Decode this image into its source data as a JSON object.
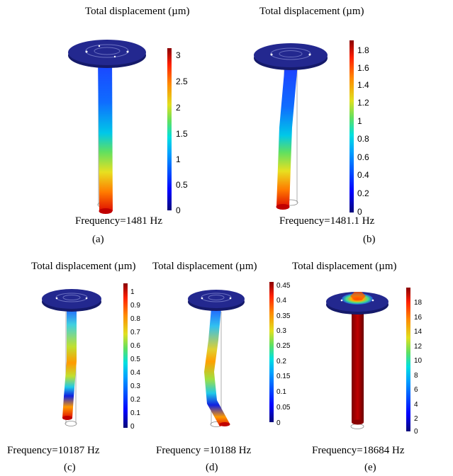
{
  "panels": [
    {
      "title": "Total displacement (µm)",
      "frequency": "Frequency=1481 Hz",
      "label": "(a)",
      "ticks": [
        "3",
        "2.5",
        "2",
        "1.5",
        "1",
        "0.5",
        "0"
      ]
    },
    {
      "title": "Total displacement (µm)",
      "frequency": "Frequency=1481.1 Hz",
      "label": "(b)",
      "ticks": [
        "1.8",
        "1.6",
        "1.4",
        "1.2",
        "1",
        "0.8",
        "0.6",
        "0.4",
        "0.2",
        "0"
      ]
    },
    {
      "title": "Total displacement (µm)",
      "frequency": "Frequency=10187 Hz",
      "label": "(c)",
      "ticks": [
        "1",
        "0.9",
        "0.8",
        "0.7",
        "0.6",
        "0.5",
        "0.4",
        "0.3",
        "0.2",
        "0.1",
        "0"
      ]
    },
    {
      "title": "Total displacement (µm)",
      "frequency": "Frequency =10188 Hz",
      "label": "(d)",
      "ticks": [
        "0.45",
        "0.4",
        "0.35",
        "0.3",
        "0.25",
        "0.2",
        "0.15",
        "0.1",
        "0.05",
        "0"
      ]
    },
    {
      "title": "Total displacement (µm)",
      "frequency": "Frequency=18684 Hz",
      "label": "(e)",
      "ticks": [
        "18",
        "16",
        "14",
        "12",
        "10",
        "8",
        "6",
        "4",
        "2",
        "0"
      ]
    }
  ],
  "colors": {
    "disk": "#23288f",
    "disk_side": "#151a6a",
    "colormap": [
      "#08087a",
      "#0000ff",
      "#00a0ff",
      "#00e0e0",
      "#40e080",
      "#e0e020",
      "#ff8a00",
      "#ff2000",
      "#8a0000"
    ]
  }
}
